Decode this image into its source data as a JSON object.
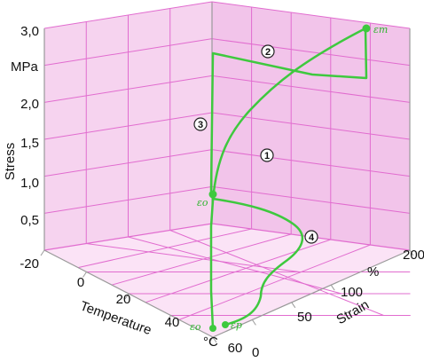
{
  "chart_data": {
    "type": "line",
    "title": "",
    "axes": {
      "stress": {
        "label": "Stress",
        "unit": "MPa",
        "ticks": [
          "0,5",
          "1,0",
          "1,5",
          "2,0",
          "3,0"
        ],
        "range": [
          0,
          3.0
        ]
      },
      "temperature": {
        "label": "Temperature",
        "unit": "°C",
        "ticks": [
          "-20",
          "0",
          "20",
          "40",
          "60"
        ],
        "range": [
          -20,
          60
        ]
      },
      "strain": {
        "label": "Strain",
        "unit": "%",
        "ticks": [
          "0",
          "50",
          "100",
          "200"
        ],
        "range": [
          0,
          200
        ]
      }
    },
    "grid": true,
    "point_labels": [
      {
        "name": "epsilon-m",
        "text": "εm"
      },
      {
        "name": "epsilon-o",
        "text": "εo"
      },
      {
        "name": "epsilon-p",
        "text": "εp"
      },
      {
        "name": "epsilon-origin",
        "text": "εo"
      }
    ],
    "stages": [
      "1",
      "2",
      "3",
      "4"
    ],
    "colors": {
      "curve": "#3ec93e",
      "grid": "#e16ccf",
      "back_wall": "#f2c4ea",
      "side_wall": "#f6d3ef",
      "floor": "#fbe3f6",
      "axis": "#9a9a9a"
    }
  }
}
